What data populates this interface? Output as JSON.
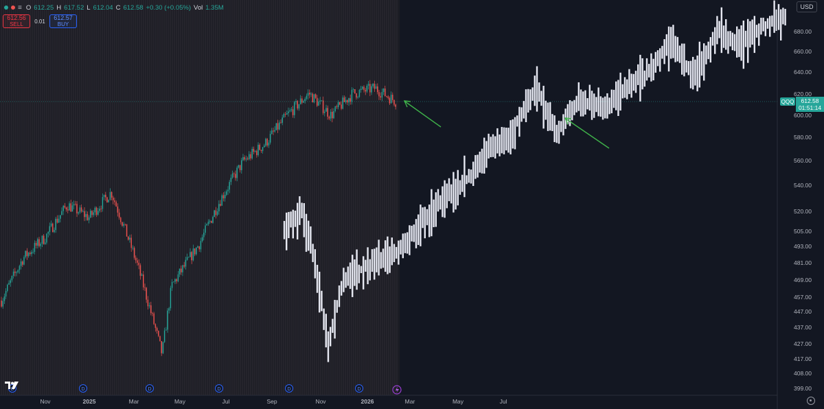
{
  "header": {
    "open_label": "O",
    "open": "612.25",
    "high_label": "H",
    "high": "617.52",
    "low_label": "L",
    "low": "612.04",
    "close_label": "C",
    "close": "612.58",
    "change": "+0.30 (+0.05%)",
    "vol_label": "Vol",
    "vol": "1.35M",
    "menu_icon": "menu-lines-icon"
  },
  "trade": {
    "sell_price": "612.56",
    "sell_label": "SELL",
    "spread": "0.01",
    "buy_price": "612.57",
    "buy_label": "BUY"
  },
  "currency": "USD",
  "last_price": {
    "symbol": "QQQ",
    "price": "612.58",
    "countdown": "01:51:14"
  },
  "colors": {
    "background": "#131722",
    "up": "#26a69a",
    "down": "#ef5350",
    "overlay": "#e7e9f3",
    "arrow": "#3fb24a",
    "grid": "#2a2e39",
    "axis_text": "#b2b5be"
  },
  "chart_data": {
    "type": "candlestick",
    "y_axis": {
      "scale": "log",
      "ticks": [
        "680.00",
        "660.00",
        "640.00",
        "620.00",
        "600.00",
        "580.00",
        "560.00",
        "540.00",
        "520.00",
        "505.00",
        "493.00",
        "481.00",
        "469.00",
        "457.00",
        "447.00",
        "437.00",
        "427.00",
        "417.00",
        "408.00",
        "399.00"
      ]
    },
    "x_axis": {
      "ticks": [
        "Nov",
        "2025",
        "Mar",
        "May",
        "Jul",
        "Sep",
        "Nov",
        "2026",
        "Mar",
        "May",
        "Jul"
      ]
    },
    "series": [
      {
        "kind": "candles",
        "period": "Sep 2024 - Feb 2026",
        "path_x": [
          "Sep 2024",
          "Oct 2024",
          "Nov 2024",
          "Dec 2024",
          "Jan 2025",
          "Feb 2025",
          "Mar 2025",
          "Apr 2025",
          "Apr 2025",
          "May 2025",
          "Jun 2025",
          "Jul 2025",
          "Aug 2025",
          "Sep 2025",
          "Oct 2025",
          "Nov 2025",
          "Dec 2025",
          "Jan 2026",
          "Feb 2026"
        ],
        "path_y": [
          455,
          485,
          500,
          525,
          515,
          535,
          480,
          420,
          465,
          495,
          530,
          560,
          575,
          600,
          620,
          600,
          620,
          625,
          612
        ]
      },
      {
        "kind": "overlay-bars",
        "path_x": [
          "Sep",
          "Oct",
          "Nov",
          "Dec",
          "Jan",
          "Feb",
          "Mar",
          "Apr",
          "May",
          "Jun",
          "Jul",
          "Aug",
          "Sep",
          "Oct",
          "Nov",
          "Dec",
          "Jan",
          "Feb",
          "Mar",
          "Apr",
          "May",
          "Jun",
          "Jul"
        ],
        "path_y": [
          505,
          522,
          490,
          425,
          470,
          490,
          510,
          530,
          545,
          570,
          585,
          625,
          585,
          615,
          605,
          625,
          640,
          670,
          635,
          680,
          665,
          685,
          695
        ]
      }
    ],
    "annotations": [
      "arrow",
      "arrow"
    ],
    "event_markers": [
      "D",
      "D",
      "D",
      "D",
      "D",
      "D"
    ],
    "grid": false
  }
}
